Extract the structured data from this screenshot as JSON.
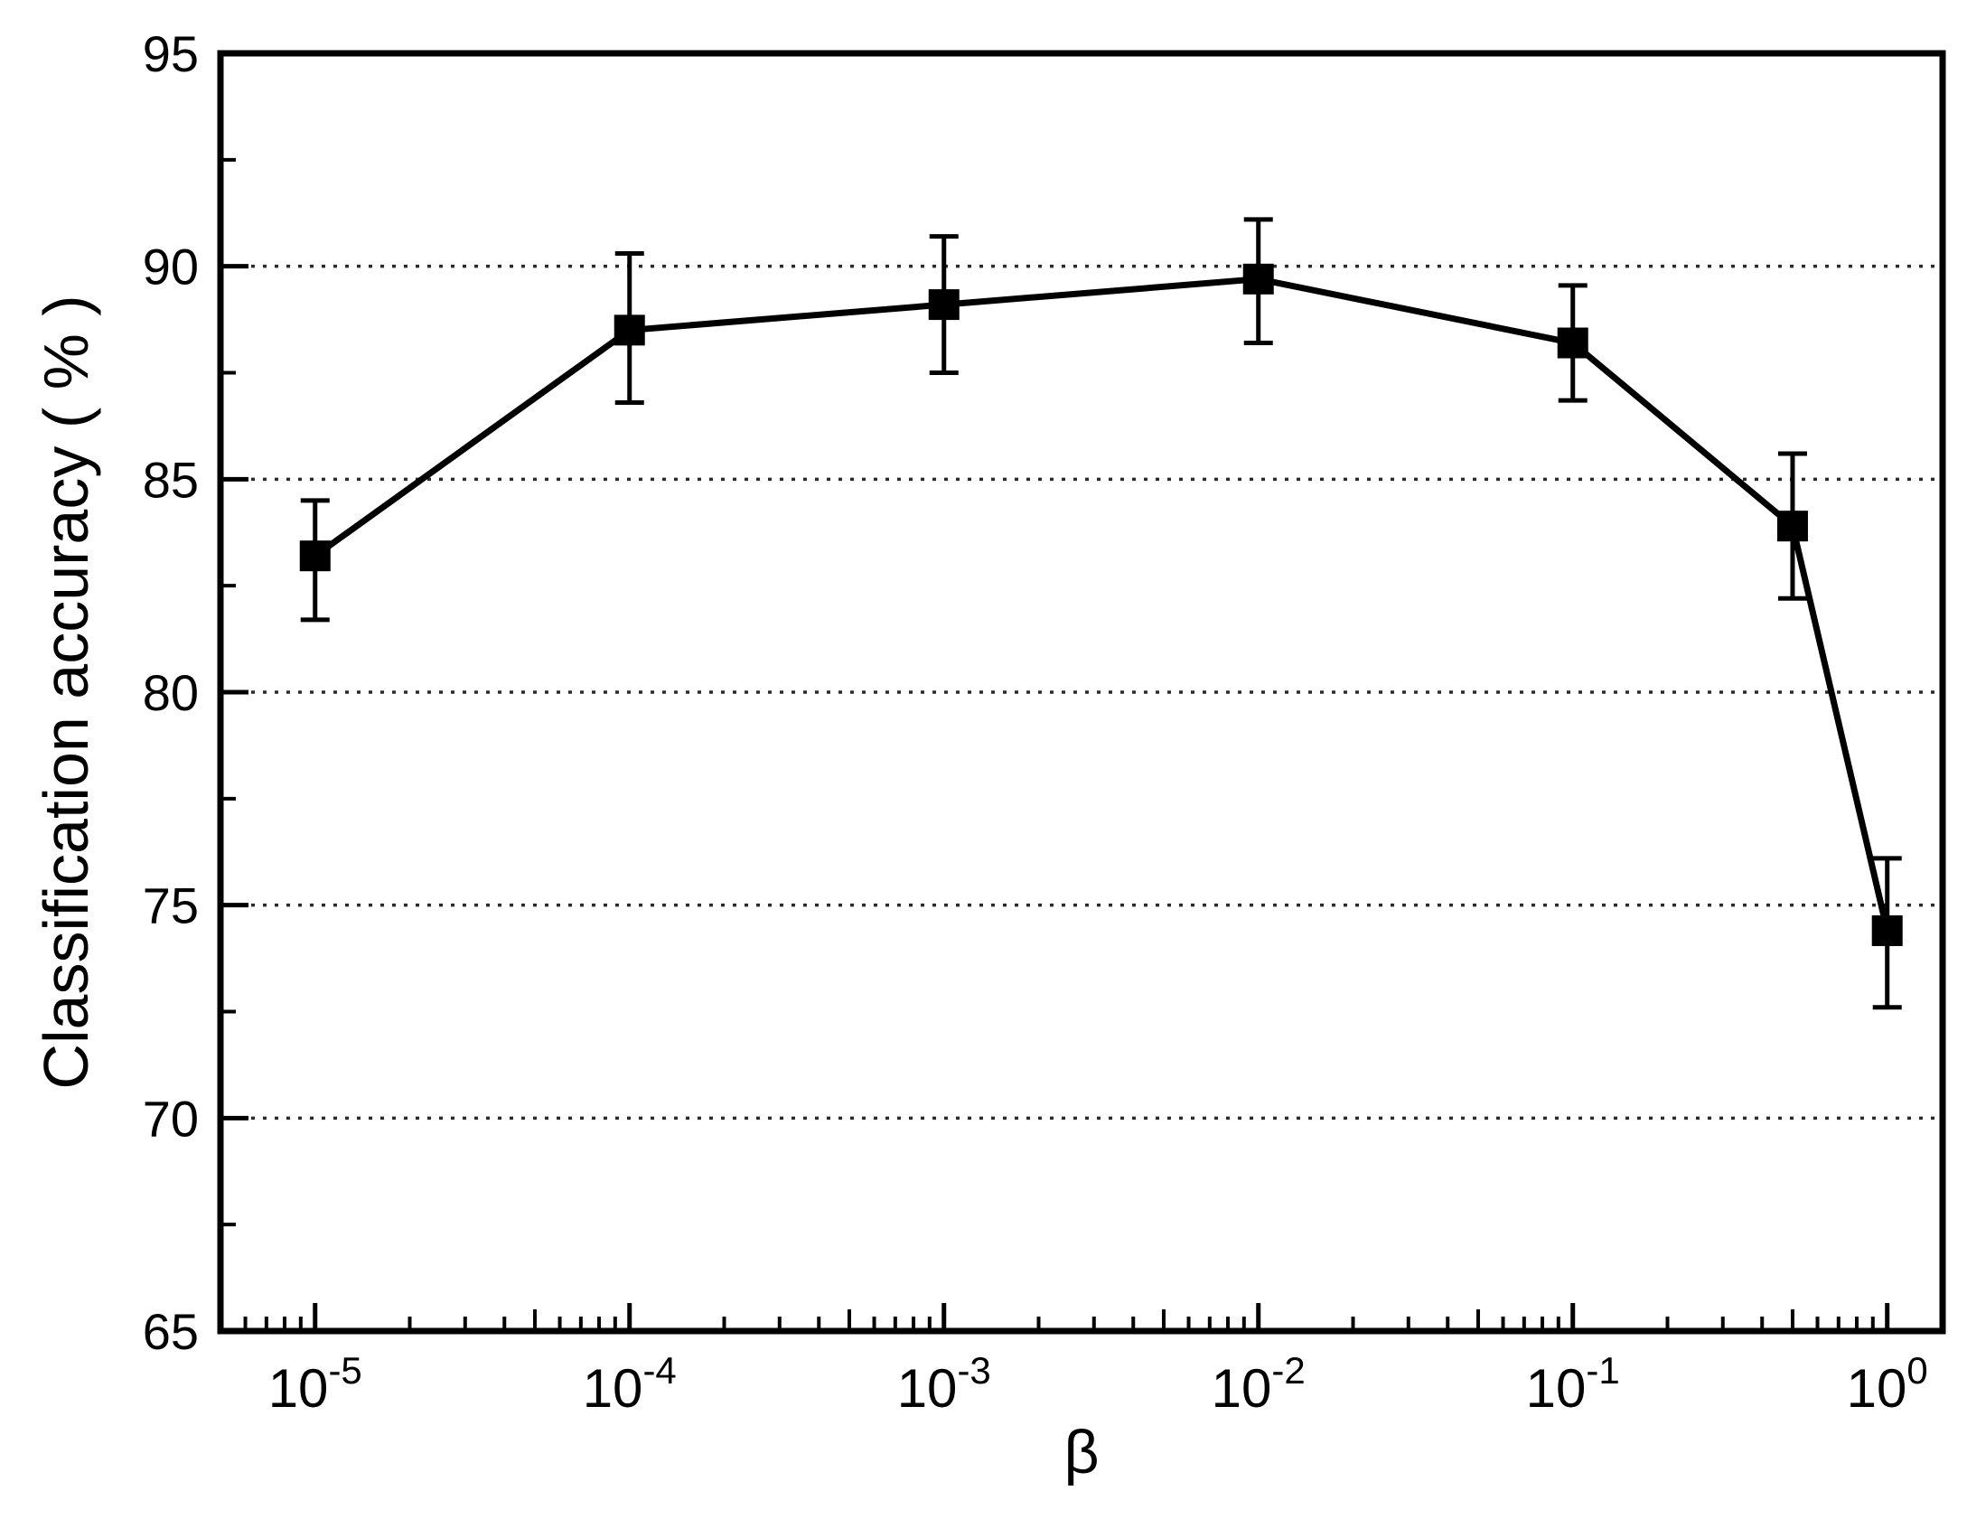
{
  "chart_data": {
    "type": "line",
    "title": "",
    "xlabel": "β",
    "ylabel": "Classification accuracy ( % )",
    "x_scale": "log",
    "y_scale": "linear",
    "xlim": [
      5e-06,
      1.5
    ],
    "ylim": [
      65,
      95
    ],
    "x_major_ticks": [
      1e-05,
      0.0001,
      0.001,
      0.01,
      0.1,
      1
    ],
    "x_major_tick_labels": [
      {
        "base": "10",
        "exp": "-5"
      },
      {
        "base": "10",
        "exp": "-4"
      },
      {
        "base": "10",
        "exp": "-3"
      },
      {
        "base": "10",
        "exp": "-2"
      },
      {
        "base": "10",
        "exp": "-1"
      },
      {
        "base": "10",
        "exp": "0"
      }
    ],
    "y_major_ticks": [
      65,
      70,
      75,
      80,
      85,
      90,
      95
    ],
    "y_major_tick_labels": [
      "65",
      "70",
      "75",
      "80",
      "85",
      "90",
      "95"
    ],
    "y_minor_ticks": [
      67.5,
      72.5,
      77.5,
      82.5,
      87.5,
      92.5
    ],
    "gridlines_y": [
      70,
      75,
      80,
      85,
      90
    ],
    "grid_style": "dotted",
    "legend": null,
    "colors": {
      "line": "#000000",
      "marker": "#000000",
      "grid": "#2b2b2b",
      "axis": "#000000",
      "text": "#000000",
      "background": "#ffffff"
    },
    "series": [
      {
        "name": "classification accuracy",
        "marker": "square",
        "x": [
          1e-05,
          0.0001,
          0.001,
          0.01,
          0.1,
          0.5,
          1
        ],
        "y": [
          83.2,
          88.5,
          89.1,
          89.7,
          88.2,
          83.9,
          74.4
        ],
        "err_up": [
          1.3,
          1.8,
          1.6,
          1.4,
          1.35,
          1.7,
          1.7
        ],
        "err_down": [
          1.5,
          1.7,
          1.6,
          1.5,
          1.35,
          1.7,
          1.8
        ]
      }
    ]
  }
}
